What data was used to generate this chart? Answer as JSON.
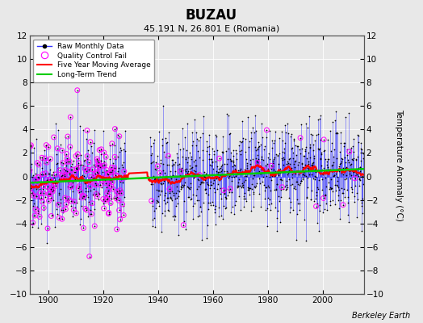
{
  "title": "BUZAU",
  "subtitle": "45.191 N, 26.801 E (Romania)",
  "ylabel": "Temperature Anomaly (°C)",
  "credit": "Berkeley Earth",
  "ylim": [
    -10,
    12
  ],
  "yticks": [
    -10,
    -8,
    -6,
    -4,
    -2,
    0,
    2,
    4,
    6,
    8,
    10,
    12
  ],
  "xlim": [
    1893,
    2015
  ],
  "xticks": [
    1900,
    1920,
    1940,
    1960,
    1980,
    2000
  ],
  "bg_color": "#e8e8e8",
  "plot_bg_color": "#e8e8e8",
  "raw_line_color": "#3333ff",
  "raw_dot_color": "black",
  "qc_fail_color": "magenta",
  "moving_avg_color": "red",
  "trend_color": "#00cc00",
  "seed": 42,
  "start_year": 1893.0,
  "end_year": 2014.9
}
